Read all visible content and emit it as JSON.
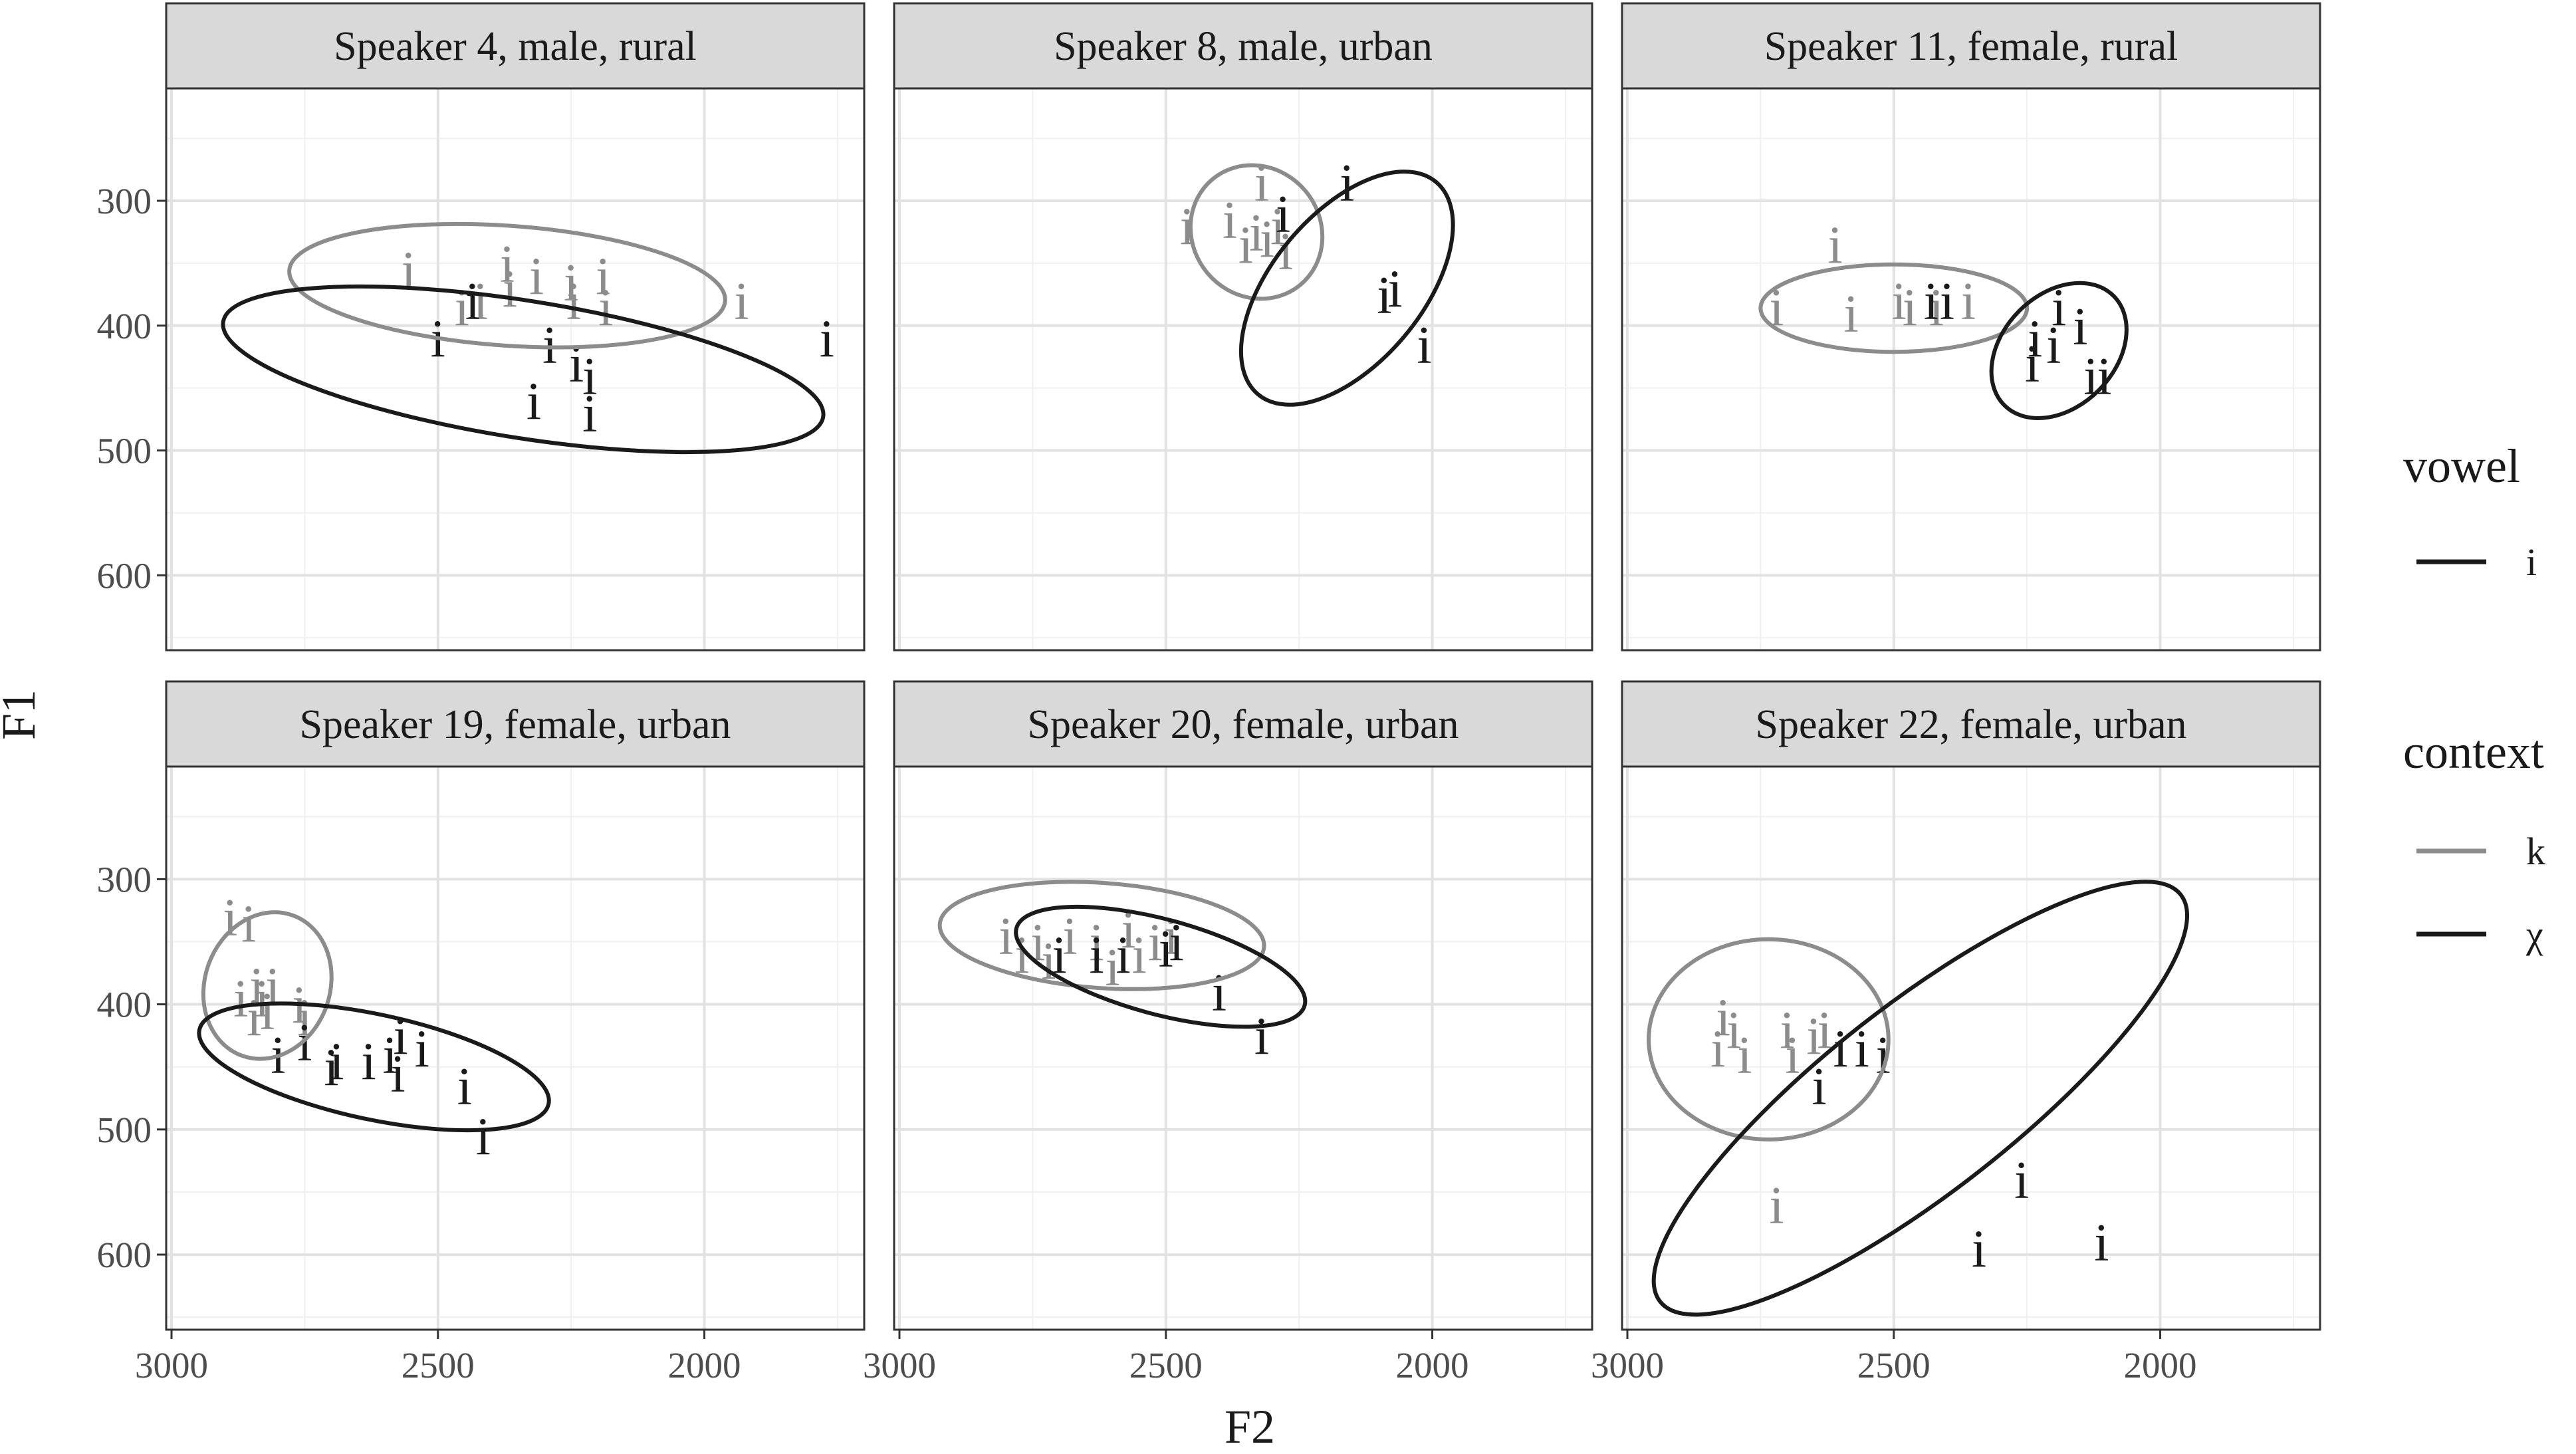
{
  "chart_data": {
    "type": "scatter",
    "xlabel": "F2",
    "ylabel": "F1",
    "x_reversed": true,
    "y_reversed": true,
    "xlim": [
      3010,
      1700
    ],
    "ylim": [
      210,
      660
    ],
    "x_ticks": [
      3000,
      2500,
      2000
    ],
    "y_ticks": [
      300,
      400,
      500,
      600
    ],
    "grid": true,
    "colors": {
      "k": "#8c8c8c",
      "χ": "#1a1a1a"
    },
    "legend": {
      "position": "right",
      "groups": [
        {
          "title": "vowel",
          "entries": [
            {
              "label": "i",
              "color": "#1a1a1a"
            }
          ]
        },
        {
          "title": "context",
          "entries": [
            {
              "label": "k",
              "color": "#8c8c8c"
            },
            {
              "label": "χ",
              "color": "#1a1a1a"
            }
          ]
        }
      ]
    },
    "panels": [
      {
        "title": "Speaker 4, male, rural",
        "points": [
          {
            "x": 2555,
            "y": 355,
            "ctx": "k"
          },
          {
            "x": 2455,
            "y": 385,
            "ctx": "k"
          },
          {
            "x": 2420,
            "y": 380,
            "ctx": "k"
          },
          {
            "x": 2370,
            "y": 350,
            "ctx": "k"
          },
          {
            "x": 2365,
            "y": 370,
            "ctx": "k"
          },
          {
            "x": 2315,
            "y": 360,
            "ctx": "k"
          },
          {
            "x": 2250,
            "y": 365,
            "ctx": "k"
          },
          {
            "x": 2245,
            "y": 380,
            "ctx": "k"
          },
          {
            "x": 2190,
            "y": 360,
            "ctx": "k"
          },
          {
            "x": 2185,
            "y": 385,
            "ctx": "k"
          },
          {
            "x": 1930,
            "y": 380,
            "ctx": "k"
          },
          {
            "x": 2500,
            "y": 410,
            "ctx": "χ"
          },
          {
            "x": 2435,
            "y": 380,
            "ctx": "χ"
          },
          {
            "x": 2290,
            "y": 415,
            "ctx": "χ"
          },
          {
            "x": 2240,
            "y": 430,
            "ctx": "χ"
          },
          {
            "x": 2215,
            "y": 440,
            "ctx": "χ"
          },
          {
            "x": 2320,
            "y": 460,
            "ctx": "χ"
          },
          {
            "x": 2215,
            "y": 470,
            "ctx": "χ"
          },
          {
            "x": 1770,
            "y": 410,
            "ctx": "χ"
          }
        ],
        "ellipses": [
          {
            "ctx": "k",
            "cx": 2370,
            "cy": 368,
            "rx_f2": 410,
            "ry_f1": 48,
            "angle": 4
          },
          {
            "ctx": "χ",
            "cx": 2340,
            "cy": 435,
            "rx_f2": 570,
            "ry_f1": 55,
            "angle": 9
          }
        ]
      },
      {
        "title": "Speaker 8, male, urban",
        "points": [
          {
            "x": 2320,
            "y": 285,
            "ctx": "k"
          },
          {
            "x": 2380,
            "y": 315,
            "ctx": "k"
          },
          {
            "x": 2330,
            "y": 325,
            "ctx": "k"
          },
          {
            "x": 2310,
            "y": 330,
            "ctx": "k"
          },
          {
            "x": 2290,
            "y": 320,
            "ctx": "k"
          },
          {
            "x": 2275,
            "y": 340,
            "ctx": "k"
          },
          {
            "x": 2460,
            "y": 320,
            "ctx": "k"
          },
          {
            "x": 2350,
            "y": 335,
            "ctx": "k"
          },
          {
            "x": 2280,
            "y": 310,
            "ctx": "χ"
          },
          {
            "x": 2160,
            "y": 285,
            "ctx": "χ"
          },
          {
            "x": 2090,
            "y": 375,
            "ctx": "χ"
          },
          {
            "x": 2070,
            "y": 370,
            "ctx": "χ"
          },
          {
            "x": 2015,
            "y": 415,
            "ctx": "χ"
          }
        ],
        "ellipses": [
          {
            "ctx": "k",
            "cx": 2330,
            "cy": 325,
            "rx_f2": 120,
            "ry_f1": 55,
            "angle": -40
          },
          {
            "ctx": "χ",
            "cx": 2160,
            "cy": 370,
            "rx_f2": 260,
            "ry_f1": 60,
            "angle": -50
          }
        ]
      },
      {
        "title": "Speaker 11, female, rural",
        "points": [
          {
            "x": 2610,
            "y": 335,
            "ctx": "k"
          },
          {
            "x": 2720,
            "y": 385,
            "ctx": "k"
          },
          {
            "x": 2580,
            "y": 390,
            "ctx": "k"
          },
          {
            "x": 2490,
            "y": 380,
            "ctx": "k"
          },
          {
            "x": 2470,
            "y": 385,
            "ctx": "k"
          },
          {
            "x": 2420,
            "y": 385,
            "ctx": "k"
          },
          {
            "x": 2360,
            "y": 380,
            "ctx": "k"
          },
          {
            "x": 2430,
            "y": 380,
            "ctx": "χ"
          },
          {
            "x": 2400,
            "y": 380,
            "ctx": "χ"
          },
          {
            "x": 2240,
            "y": 430,
            "ctx": "χ"
          },
          {
            "x": 2235,
            "y": 410,
            "ctx": "χ"
          },
          {
            "x": 2200,
            "y": 415,
            "ctx": "χ"
          },
          {
            "x": 2190,
            "y": 385,
            "ctx": "χ"
          },
          {
            "x": 2150,
            "y": 400,
            "ctx": "χ"
          },
          {
            "x": 2130,
            "y": 440,
            "ctx": "χ"
          },
          {
            "x": 2105,
            "y": 440,
            "ctx": "χ"
          }
        ],
        "ellipses": [
          {
            "ctx": "k",
            "cx": 2500,
            "cy": 386,
            "rx_f2": 250,
            "ry_f1": 35,
            "angle": 0
          },
          {
            "ctx": "χ",
            "cx": 2190,
            "cy": 420,
            "rx_f2": 145,
            "ry_f1": 45,
            "angle": -45
          }
        ]
      },
      {
        "title": "Speaker 19, female, urban",
        "points": [
          {
            "x": 2890,
            "y": 330,
            "ctx": "k"
          },
          {
            "x": 2855,
            "y": 335,
            "ctx": "k"
          },
          {
            "x": 2870,
            "y": 395,
            "ctx": "k"
          },
          {
            "x": 2840,
            "y": 385,
            "ctx": "k"
          },
          {
            "x": 2830,
            "y": 395,
            "ctx": "k"
          },
          {
            "x": 2820,
            "y": 405,
            "ctx": "k"
          },
          {
            "x": 2810,
            "y": 385,
            "ctx": "k"
          },
          {
            "x": 2845,
            "y": 410,
            "ctx": "k"
          },
          {
            "x": 2760,
            "y": 400,
            "ctx": "k"
          },
          {
            "x": 2750,
            "y": 410,
            "ctx": "k"
          },
          {
            "x": 2800,
            "y": 440,
            "ctx": "χ"
          },
          {
            "x": 2750,
            "y": 430,
            "ctx": "χ"
          },
          {
            "x": 2700,
            "y": 450,
            "ctx": "χ"
          },
          {
            "x": 2690,
            "y": 445,
            "ctx": "χ"
          },
          {
            "x": 2630,
            "y": 445,
            "ctx": "χ"
          },
          {
            "x": 2590,
            "y": 440,
            "ctx": "χ"
          },
          {
            "x": 2575,
            "y": 455,
            "ctx": "χ"
          },
          {
            "x": 2570,
            "y": 425,
            "ctx": "χ"
          },
          {
            "x": 2530,
            "y": 435,
            "ctx": "χ"
          },
          {
            "x": 2450,
            "y": 465,
            "ctx": "χ"
          },
          {
            "x": 2415,
            "y": 505,
            "ctx": "χ"
          }
        ],
        "ellipses": [
          {
            "ctx": "k",
            "cx": 2820,
            "cy": 385,
            "rx_f2": 140,
            "ry_f1": 50,
            "angle": -70
          },
          {
            "ctx": "χ",
            "cx": 2620,
            "cy": 450,
            "rx_f2": 335,
            "ry_f1": 42,
            "angle": 12
          }
        ]
      },
      {
        "title": "Speaker 20, female, urban",
        "points": [
          {
            "x": 2800,
            "y": 345,
            "ctx": "k"
          },
          {
            "x": 2770,
            "y": 360,
            "ctx": "k"
          },
          {
            "x": 2740,
            "y": 350,
            "ctx": "k"
          },
          {
            "x": 2720,
            "y": 365,
            "ctx": "k"
          },
          {
            "x": 2680,
            "y": 345,
            "ctx": "k"
          },
          {
            "x": 2630,
            "y": 350,
            "ctx": "k"
          },
          {
            "x": 2600,
            "y": 370,
            "ctx": "k"
          },
          {
            "x": 2570,
            "y": 340,
            "ctx": "k"
          },
          {
            "x": 2550,
            "y": 360,
            "ctx": "k"
          },
          {
            "x": 2520,
            "y": 350,
            "ctx": "k"
          },
          {
            "x": 2490,
            "y": 345,
            "ctx": "k"
          },
          {
            "x": 2700,
            "y": 360,
            "ctx": "χ"
          },
          {
            "x": 2630,
            "y": 360,
            "ctx": "χ"
          },
          {
            "x": 2580,
            "y": 360,
            "ctx": "χ"
          },
          {
            "x": 2500,
            "y": 355,
            "ctx": "χ"
          },
          {
            "x": 2480,
            "y": 350,
            "ctx": "χ"
          },
          {
            "x": 2400,
            "y": 390,
            "ctx": "χ"
          },
          {
            "x": 2320,
            "y": 425,
            "ctx": "χ"
          }
        ],
        "ellipses": [
          {
            "ctx": "k",
            "cx": 2620,
            "cy": 345,
            "rx_f2": 305,
            "ry_f1": 42,
            "angle": 4
          },
          {
            "ctx": "χ",
            "cx": 2510,
            "cy": 370,
            "rx_f2": 280,
            "ry_f1": 38,
            "angle": 15
          }
        ]
      },
      {
        "title": "Speaker 22, female, urban",
        "points": [
          {
            "x": 2820,
            "y": 410,
            "ctx": "k"
          },
          {
            "x": 2800,
            "y": 420,
            "ctx": "k"
          },
          {
            "x": 2830,
            "y": 435,
            "ctx": "k"
          },
          {
            "x": 2780,
            "y": 440,
            "ctx": "k"
          },
          {
            "x": 2700,
            "y": 420,
            "ctx": "k"
          },
          {
            "x": 2690,
            "y": 440,
            "ctx": "k"
          },
          {
            "x": 2650,
            "y": 425,
            "ctx": "k"
          },
          {
            "x": 2630,
            "y": 420,
            "ctx": "k"
          },
          {
            "x": 2720,
            "y": 560,
            "ctx": "k"
          },
          {
            "x": 2600,
            "y": 435,
            "ctx": "χ"
          },
          {
            "x": 2560,
            "y": 435,
            "ctx": "χ"
          },
          {
            "x": 2520,
            "y": 440,
            "ctx": "χ"
          },
          {
            "x": 2640,
            "y": 465,
            "ctx": "χ"
          },
          {
            "x": 2260,
            "y": 540,
            "ctx": "χ"
          },
          {
            "x": 2340,
            "y": 595,
            "ctx": "χ"
          },
          {
            "x": 2110,
            "y": 590,
            "ctx": "χ"
          }
        ],
        "ellipses": [
          {
            "ctx": "k",
            "cx": 2735,
            "cy": 428,
            "rx_f2": 225,
            "ry_f1": 80,
            "angle": 0
          },
          {
            "ctx": "χ",
            "cx": 2450,
            "cy": 475,
            "rx_f2": 620,
            "ry_f1": 75,
            "angle": -38
          }
        ]
      }
    ]
  }
}
